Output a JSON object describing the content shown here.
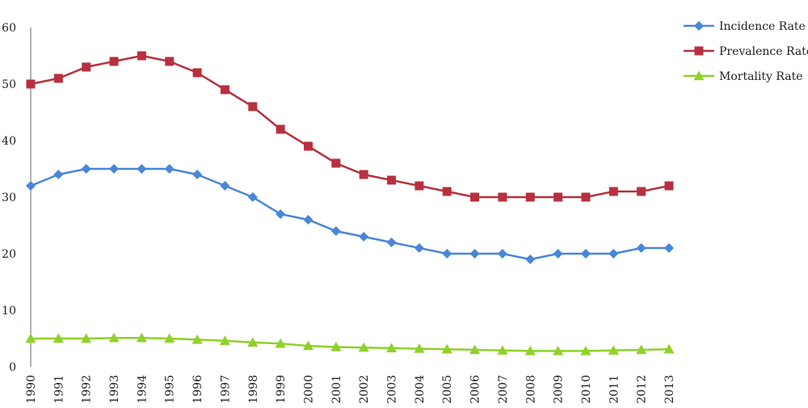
{
  "chart_data": {
    "type": "line",
    "title": "",
    "xlabel": "",
    "ylabel": "",
    "ylim": [
      0,
      60
    ],
    "yticks": [
      0,
      10,
      20,
      30,
      40,
      50,
      60
    ],
    "grid": false,
    "legend_position": "top-right",
    "categories": [
      "1990",
      "1991",
      "1992",
      "1993",
      "1994",
      "1995",
      "1996",
      "1997",
      "1998",
      "1999",
      "2000",
      "2001",
      "2002",
      "2003",
      "2004",
      "2005",
      "2006",
      "2007",
      "2008",
      "2009",
      "2010",
      "2011",
      "2012",
      "2013"
    ],
    "series": [
      {
        "name": "Incidence Rate",
        "marker": "diamond",
        "color": "#4a86d8",
        "values": [
          32,
          34,
          35,
          35,
          35,
          35,
          34,
          32,
          30,
          27,
          26,
          24,
          23,
          22,
          21,
          20,
          20,
          20,
          19,
          20,
          20,
          20,
          21,
          21
        ]
      },
      {
        "name": "Prevalence Rate",
        "marker": "square",
        "color": "#b8303f",
        "values": [
          50,
          51,
          53,
          54,
          55,
          54,
          52,
          49,
          46,
          42,
          39,
          36,
          34,
          33,
          32,
          31,
          30,
          30,
          30,
          30,
          30,
          31,
          31,
          32
        ]
      },
      {
        "name": "Mortality Rate",
        "marker": "triangle",
        "color": "#8fd12a",
        "values": [
          5,
          5,
          5,
          5.1,
          5.1,
          5,
          4.8,
          4.6,
          4.3,
          4.1,
          3.7,
          3.5,
          3.4,
          3.3,
          3.2,
          3.1,
          3.0,
          2.9,
          2.8,
          2.8,
          2.8,
          2.9,
          3.0,
          3.1
        ]
      }
    ]
  }
}
